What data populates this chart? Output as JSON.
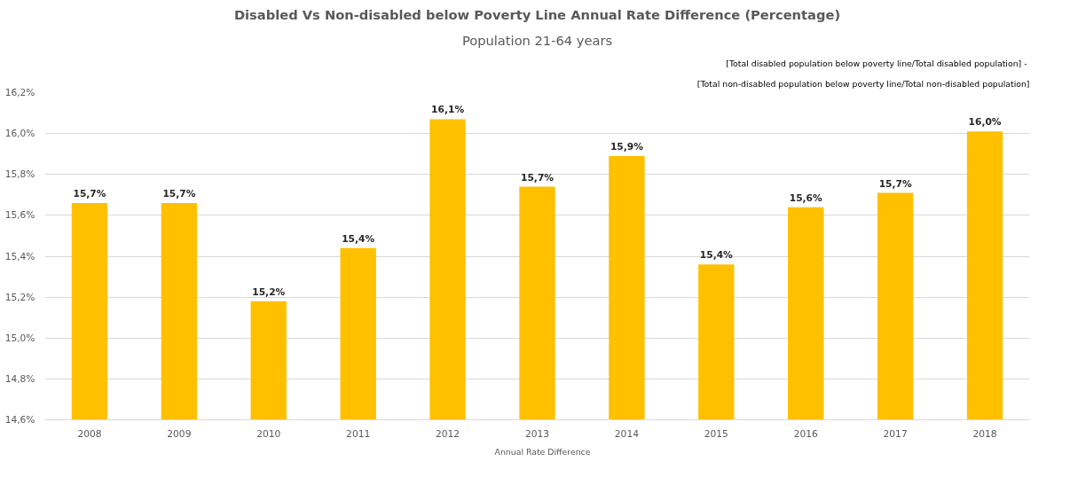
{
  "chart_data": {
    "type": "bar",
    "title": "Disabled Vs Non-disabled below Poverty Line Annual Rate Difference (Percentage)",
    "subtitle": "Population 21-64 years",
    "annotations": [
      "[Total disabled  population below poverty line/Total disabled population] -",
      "[Total non-disabled population below poverty line/Total non-disabled population]"
    ],
    "categories": [
      "2008",
      "2009",
      "2010",
      "2011",
      "2012",
      "2013",
      "2014",
      "2015",
      "2016",
      "2017",
      "2018"
    ],
    "series": [
      {
        "name": "Annual Rate Difference",
        "color": "#ffc000",
        "values": [
          15.66,
          15.66,
          15.18,
          15.44,
          16.07,
          15.74,
          15.89,
          15.36,
          15.64,
          15.71,
          16.01
        ],
        "value_labels": [
          "15,7%",
          "15,7%",
          "15,2%",
          "15,4%",
          "16,1%",
          "15,7%",
          "15,9%",
          "15,4%",
          "15,6%",
          "15,7%",
          "16,0%"
        ]
      }
    ],
    "ylim": [
      14.6,
      16.2
    ],
    "yticks": [
      {
        "value": 14.6,
        "label": "14,6%"
      },
      {
        "value": 14.8,
        "label": "14,8%"
      },
      {
        "value": 15.0,
        "label": "15,0%"
      },
      {
        "value": 15.2,
        "label": "15,2%"
      },
      {
        "value": 15.4,
        "label": "15,4%"
      },
      {
        "value": 15.6,
        "label": "15,6%"
      },
      {
        "value": 15.8,
        "label": "15,8%"
      },
      {
        "value": 16.0,
        "label": "16,0%"
      },
      {
        "value": 16.2,
        "label": "16,2%"
      }
    ],
    "grid": "y",
    "legend": "bottom"
  }
}
